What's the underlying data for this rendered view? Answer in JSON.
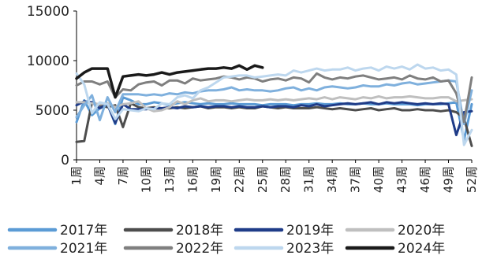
{
  "chart_data": {
    "type": "line",
    "xlabel": "",
    "ylabel": "",
    "ylim": [
      0,
      15000
    ],
    "y_ticks": [
      0,
      5000,
      10000,
      15000
    ],
    "x_ticks": [
      1,
      4,
      7,
      10,
      13,
      16,
      19,
      22,
      25,
      28,
      31,
      34,
      37,
      40,
      43,
      46,
      49,
      52
    ],
    "x_tick_suffix": "周",
    "x_range": [
      1,
      52
    ],
    "grid": false,
    "legend_position": "bottom",
    "colors": {
      "s2017": "#5B9BD5",
      "s2018": "#4D4D4D",
      "s2019": "#1F3C88",
      "s2020": "#BFBFBF",
      "s2021": "#7FB0DD",
      "s2022": "#7F7F7F",
      "s2023": "#BDD7EE",
      "s2024": "#1A1A1A"
    },
    "series": [
      {
        "name": "2017年",
        "x": [
          1,
          2,
          3,
          4,
          5,
          6,
          7,
          8,
          9,
          10,
          11,
          12,
          13,
          14,
          15,
          16,
          17,
          18,
          19,
          20,
          21,
          22,
          23,
          24,
          25,
          26,
          27,
          28,
          29,
          30,
          31,
          32,
          33,
          34,
          35,
          36,
          37,
          38,
          39,
          40,
          41,
          42,
          43,
          44,
          45,
          46,
          47,
          48,
          49,
          50,
          51,
          52
        ],
        "values": [
          3800,
          6000,
          4500,
          5200,
          5600,
          3600,
          6300,
          6000,
          5600,
          5600,
          5800,
          5700,
          5500,
          5700,
          5800,
          5700,
          5600,
          5700,
          5600,
          5600,
          5700,
          5600,
          5600,
          5600,
          5500,
          5600,
          5600,
          5600,
          5500,
          5600,
          5600,
          5700,
          5600,
          5600,
          5700,
          5600,
          5600,
          5700,
          5600,
          5600,
          5700,
          5600,
          5600,
          5600,
          5500,
          5600,
          5600,
          5600,
          5700,
          5800,
          2000,
          5600
        ]
      },
      {
        "name": "2018年",
        "x": [
          1,
          2,
          3,
          4,
          5,
          6,
          7,
          8,
          9,
          10,
          11,
          12,
          13,
          14,
          15,
          16,
          17,
          18,
          19,
          20,
          21,
          22,
          23,
          24,
          25,
          26,
          27,
          28,
          29,
          30,
          31,
          32,
          33,
          34,
          35,
          36,
          37,
          38,
          39,
          40,
          41,
          42,
          43,
          44,
          45,
          46,
          47,
          48,
          49,
          50,
          51,
          52
        ],
        "values": [
          1800,
          1900,
          5800,
          5500,
          5300,
          5500,
          3300,
          5700,
          5300,
          5200,
          5300,
          5200,
          5200,
          5300,
          5200,
          5300,
          5400,
          5200,
          5300,
          5300,
          5200,
          5300,
          5200,
          5200,
          5400,
          5300,
          5200,
          5300,
          5200,
          5200,
          5200,
          5300,
          5200,
          5100,
          5200,
          5100,
          5000,
          5100,
          5200,
          5000,
          5100,
          5200,
          5000,
          5000,
          5100,
          5000,
          5000,
          4900,
          5000,
          4800,
          4200,
          1400
        ]
      },
      {
        "name": "2019年",
        "x": [
          1,
          2,
          3,
          4,
          5,
          6,
          7,
          8,
          9,
          10,
          11,
          12,
          13,
          14,
          15,
          16,
          17,
          18,
          19,
          20,
          21,
          22,
          23,
          24,
          25,
          26,
          27,
          28,
          29,
          30,
          31,
          32,
          33,
          34,
          35,
          36,
          37,
          38,
          39,
          40,
          41,
          42,
          43,
          44,
          45,
          46,
          47,
          48,
          49,
          50,
          51,
          52
        ],
        "values": [
          5500,
          5900,
          5800,
          5200,
          5600,
          3700,
          5600,
          5100,
          5100,
          5100,
          5200,
          5200,
          5300,
          5200,
          5400,
          5300,
          5400,
          5300,
          5400,
          5400,
          5300,
          5400,
          5300,
          5300,
          5400,
          5300,
          5400,
          5400,
          5300,
          5500,
          5400,
          5600,
          5400,
          5500,
          5600,
          5700,
          5600,
          5700,
          5800,
          5600,
          5800,
          5700,
          5800,
          5700,
          5600,
          5700,
          5600,
          5700,
          5600,
          2500,
          4800,
          4900
        ]
      },
      {
        "name": "2020年",
        "x": [
          1,
          2,
          3,
          4,
          5,
          6,
          7,
          8,
          9,
          10,
          11,
          12,
          13,
          14,
          15,
          16,
          17,
          18,
          19,
          20,
          21,
          22,
          23,
          24,
          25,
          26,
          27,
          28,
          29,
          30,
          31,
          32,
          33,
          34,
          35,
          36,
          37,
          38,
          39,
          40,
          41,
          42,
          43,
          44,
          45,
          46,
          47,
          48,
          49,
          50,
          51,
          52
        ],
        "values": [
          5800,
          5800,
          5700,
          5600,
          5700,
          5300,
          5600,
          5700,
          5900,
          5200,
          4900,
          5000,
          5300,
          5900,
          5600,
          6000,
          6200,
          5900,
          6000,
          6000,
          5900,
          6000,
          6100,
          6000,
          6000,
          6100,
          6000,
          6100,
          6000,
          6100,
          6200,
          6100,
          6300,
          6100,
          6300,
          6200,
          6100,
          6300,
          6200,
          6400,
          6200,
          6300,
          6300,
          6400,
          6300,
          6200,
          6200,
          6300,
          6300,
          5900,
          6000,
          6100
        ]
      },
      {
        "name": "2021年",
        "x": [
          1,
          2,
          3,
          4,
          5,
          6,
          7,
          8,
          9,
          10,
          11,
          12,
          13,
          14,
          15,
          16,
          17,
          18,
          19,
          20,
          21,
          22,
          23,
          24,
          25,
          26,
          27,
          28,
          29,
          30,
          31,
          32,
          33,
          34,
          35,
          36,
          37,
          38,
          39,
          40,
          41,
          42,
          43,
          44,
          45,
          46,
          47,
          48,
          49,
          50,
          51,
          52
        ],
        "values": [
          4300,
          5500,
          6500,
          4000,
          6300,
          4800,
          6600,
          6600,
          6600,
          6500,
          6600,
          6500,
          6700,
          6600,
          6800,
          6700,
          6900,
          7000,
          7000,
          7100,
          7300,
          7000,
          7100,
          7000,
          7000,
          6900,
          7000,
          7200,
          7300,
          7000,
          7200,
          7000,
          7300,
          7400,
          7300,
          7200,
          7300,
          7500,
          7400,
          7400,
          7600,
          7500,
          7700,
          7800,
          7600,
          7700,
          7800,
          7900,
          8000,
          7900,
          3600,
          7000
        ]
      },
      {
        "name": "2022年",
        "x": [
          1,
          2,
          3,
          4,
          5,
          6,
          7,
          8,
          9,
          10,
          11,
          12,
          13,
          14,
          15,
          16,
          17,
          18,
          19,
          20,
          21,
          22,
          23,
          24,
          25,
          26,
          27,
          28,
          29,
          30,
          31,
          32,
          33,
          34,
          35,
          36,
          37,
          38,
          39,
          40,
          41,
          42,
          43,
          44,
          45,
          46,
          47,
          48,
          49,
          50,
          51,
          52
        ],
        "values": [
          7500,
          7900,
          7900,
          7600,
          7900,
          6300,
          7100,
          7000,
          7600,
          7800,
          7900,
          7500,
          8000,
          8000,
          7700,
          8200,
          8000,
          8100,
          8200,
          8400,
          8300,
          8100,
          8300,
          8200,
          7900,
          8100,
          8200,
          8000,
          8300,
          8200,
          7800,
          8700,
          8300,
          8100,
          8300,
          8200,
          8400,
          8500,
          8300,
          8100,
          8200,
          8300,
          8100,
          8500,
          8200,
          8100,
          8300,
          7900,
          8000,
          6700,
          3800,
          8300
        ]
      },
      {
        "name": "2023年",
        "x": [
          1,
          2,
          3,
          4,
          5,
          6,
          7,
          8,
          9,
          10,
          11,
          12,
          13,
          14,
          15,
          16,
          17,
          18,
          19,
          20,
          21,
          22,
          23,
          24,
          25,
          26,
          27,
          28,
          29,
          30,
          31,
          32,
          33,
          34,
          35,
          36,
          37,
          38,
          39,
          40,
          41,
          42,
          43,
          44,
          45,
          46,
          47,
          48,
          49,
          50,
          51,
          52
        ],
        "values": [
          8700,
          7600,
          4700,
          5800,
          5600,
          4100,
          5100,
          5000,
          4900,
          5200,
          5100,
          5700,
          5600,
          6300,
          6500,
          6200,
          7000,
          7300,
          7800,
          8300,
          8400,
          8500,
          8500,
          8300,
          8400,
          8500,
          8600,
          8500,
          9000,
          8800,
          9000,
          9200,
          9000,
          9100,
          9100,
          9300,
          9000,
          9200,
          9300,
          9000,
          9400,
          9200,
          9400,
          9100,
          9600,
          9200,
          9300,
          9000,
          9100,
          8600,
          1500,
          3000
        ]
      },
      {
        "name": "2024年",
        "x": [
          1,
          2,
          3,
          4,
          5,
          6,
          7,
          8,
          9,
          10,
          11,
          12,
          13,
          14,
          15,
          16,
          17,
          18,
          19,
          20,
          21,
          22,
          23,
          24,
          25
        ],
        "values": [
          8200,
          8800,
          9200,
          9200,
          9200,
          6300,
          8400,
          8500,
          8600,
          8500,
          8600,
          8800,
          8600,
          8800,
          8900,
          9000,
          9100,
          9200,
          9200,
          9300,
          9200,
          9500,
          9100,
          9500,
          9300
        ]
      }
    ]
  }
}
